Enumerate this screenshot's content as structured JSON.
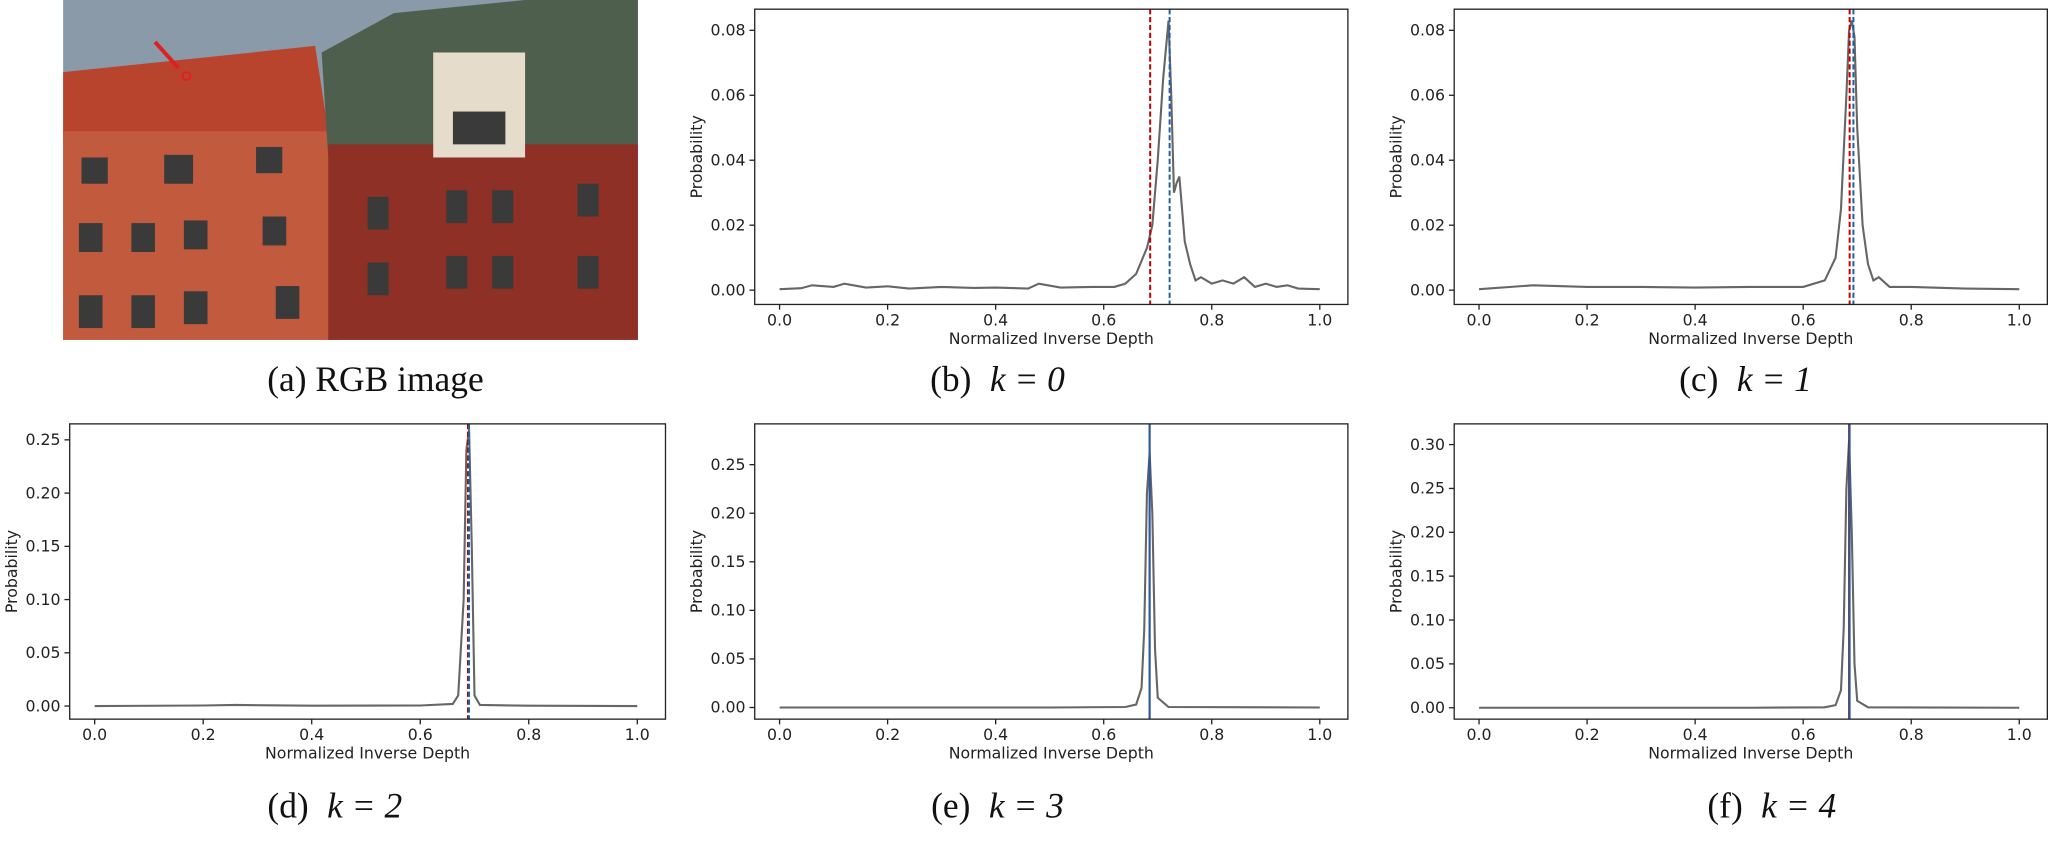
{
  "figure": {
    "image_caption": "(a) RGB image"
  },
  "chart_data": [
    {
      "type": "line",
      "caption": "(b)",
      "caption_math": "k = 0",
      "xlabel": "Normalized Inverse Depth",
      "ylabel": "Probability",
      "x": [
        0,
        0.04,
        0.06,
        0.1,
        0.12,
        0.16,
        0.2,
        0.24,
        0.3,
        0.36,
        0.4,
        0.46,
        0.48,
        0.52,
        0.58,
        0.62,
        0.64,
        0.66,
        0.67,
        0.68,
        0.69,
        0.7,
        0.71,
        0.72,
        0.725,
        0.73,
        0.735,
        0.74,
        0.75,
        0.76,
        0.77,
        0.78,
        0.8,
        0.82,
        0.84,
        0.86,
        0.88,
        0.9,
        0.92,
        0.94,
        0.96,
        1.0
      ],
      "values": [
        0.0003,
        0.0006,
        0.0015,
        0.001,
        0.002,
        0.0008,
        0.0012,
        0.0005,
        0.001,
        0.0007,
        0.0008,
        0.0005,
        0.002,
        0.0008,
        0.001,
        0.001,
        0.002,
        0.005,
        0.009,
        0.013,
        0.02,
        0.04,
        0.065,
        0.083,
        0.06,
        0.03,
        0.033,
        0.035,
        0.015,
        0.008,
        0.003,
        0.004,
        0.002,
        0.003,
        0.002,
        0.004,
        0.001,
        0.002,
        0.001,
        0.0015,
        0.0005,
        0.0003
      ],
      "color": "#666666",
      "vlines": [
        {
          "x": 0.686,
          "color": "#c00000",
          "dashed": true
        },
        {
          "x": 0.722,
          "color": "#1f5fa8",
          "dashed": true
        }
      ],
      "xlim": [
        -0.046,
        1.052
      ],
      "ylim": [
        -0.0044,
        0.0865
      ],
      "xticks": [
        {
          "value": 0,
          "label": "0.0"
        },
        0.2,
        0.4,
        0.6,
        0.8,
        {
          "value": 1,
          "label": "1.0"
        }
      ],
      "yticks": [
        {
          "value": 0,
          "label": "0.00"
        },
        0.02,
        0.04,
        0.06,
        0.08
      ]
    },
    {
      "type": "line",
      "caption": "(c)",
      "caption_math": "k = 1",
      "xlabel": "Normalized Inverse Depth",
      "ylabel": "Probability",
      "x": [
        0,
        0.1,
        0.2,
        0.3,
        0.4,
        0.5,
        0.6,
        0.64,
        0.66,
        0.67,
        0.68,
        0.685,
        0.69,
        0.695,
        0.7,
        0.71,
        0.72,
        0.73,
        0.74,
        0.76,
        0.8,
        0.9,
        1.0
      ],
      "values": [
        0.0003,
        0.0015,
        0.001,
        0.001,
        0.0008,
        0.001,
        0.001,
        0.003,
        0.01,
        0.025,
        0.06,
        0.08,
        0.083,
        0.078,
        0.05,
        0.02,
        0.008,
        0.003,
        0.004,
        0.001,
        0.001,
        0.0005,
        0.0003
      ],
      "color": "#666666",
      "vlines": [
        {
          "x": 0.686,
          "color": "#c00000",
          "dashed": true
        },
        {
          "x": 0.693,
          "color": "#1f5fa8",
          "dashed": true
        }
      ],
      "xlim": [
        -0.046,
        1.052
      ],
      "ylim": [
        -0.0044,
        0.0865
      ],
      "xticks": [
        {
          "value": 0,
          "label": "0.0"
        },
        0.2,
        0.4,
        0.6,
        0.8,
        {
          "value": 1,
          "label": "1.0"
        }
      ],
      "yticks": [
        {
          "value": 0,
          "label": "0.00"
        },
        0.02,
        0.04,
        0.06,
        0.08
      ]
    },
    {
      "type": "line",
      "caption": "(d)",
      "caption_math": "k = 2",
      "xlabel": "Normalized Inverse Depth",
      "ylabel": "Probability",
      "x": [
        0,
        0.2,
        0.26,
        0.4,
        0.6,
        0.66,
        0.67,
        0.68,
        0.685,
        0.69,
        0.695,
        0.7,
        0.71,
        0.8,
        1.0
      ],
      "values": [
        0,
        0.0005,
        0.001,
        0.0003,
        0.0005,
        0.002,
        0.01,
        0.1,
        0.24,
        0.26,
        0.15,
        0.01,
        0.001,
        0.0003,
        0
      ],
      "color": "#666666",
      "vlines": [
        {
          "x": 0.688,
          "color": "#c00000",
          "dashed": true
        },
        {
          "x": 0.69,
          "color": "#1f5fa8",
          "dashed": true
        }
      ],
      "xlim": [
        -0.046,
        1.052
      ],
      "ylim": [
        -0.0123,
        0.265
      ],
      "xticks": [
        {
          "value": 0,
          "label": "0.0"
        },
        0.2,
        0.4,
        0.6,
        0.8,
        {
          "value": 1,
          "label": "1.0"
        }
      ],
      "yticks": [
        {
          "value": 0,
          "label": "0.00"
        },
        0.05,
        {
          "value": 0.1,
          "label": "0.10"
        },
        0.15,
        {
          "value": 0.2,
          "label": "0.20"
        },
        0.25
      ]
    },
    {
      "type": "line",
      "caption": "(e)",
      "caption_math": "k = 3",
      "xlabel": "Normalized Inverse Depth",
      "ylabel": "Probability",
      "x": [
        0,
        0.5,
        0.64,
        0.66,
        0.67,
        0.675,
        0.68,
        0.685,
        0.69,
        0.695,
        0.7,
        0.72,
        1.0
      ],
      "values": [
        0,
        0,
        0.0005,
        0.003,
        0.02,
        0.08,
        0.22,
        0.262,
        0.2,
        0.06,
        0.01,
        0.0005,
        0
      ],
      "color": "#666666",
      "vlines": [
        {
          "x": 0.685,
          "color": "#c00000",
          "dashed": false
        },
        {
          "x": 0.685,
          "color": "#1f5fa8",
          "dashed": false
        }
      ],
      "xlim": [
        -0.046,
        1.052
      ],
      "ylim": [
        -0.012,
        0.292
      ],
      "xticks": [
        {
          "value": 0,
          "label": "0.0"
        },
        0.2,
        0.4,
        0.6,
        0.8,
        {
          "value": 1,
          "label": "1.0"
        }
      ],
      "yticks": [
        {
          "value": 0,
          "label": "0.00"
        },
        0.05,
        {
          "value": 0.1,
          "label": "0.10"
        },
        0.15,
        {
          "value": 0.2,
          "label": "0.20"
        },
        0.25
      ]
    },
    {
      "type": "line",
      "caption": "(f)",
      "caption_math": "k = 4",
      "xlabel": "Normalized Inverse Depth",
      "ylabel": "Probability",
      "x": [
        0,
        0.5,
        0.64,
        0.66,
        0.67,
        0.675,
        0.68,
        0.685,
        0.69,
        0.695,
        0.7,
        0.72,
        1.0
      ],
      "values": [
        0,
        0,
        0.0005,
        0.003,
        0.02,
        0.09,
        0.25,
        0.305,
        0.2,
        0.05,
        0.008,
        0.0005,
        0
      ],
      "color": "#666666",
      "vlines": [
        {
          "x": 0.685,
          "color": "#c00000",
          "dashed": false
        },
        {
          "x": 0.686,
          "color": "#1f5fa8",
          "dashed": false
        }
      ],
      "xlim": [
        -0.046,
        1.052
      ],
      "ylim": [
        -0.013,
        0.3236
      ],
      "xticks": [
        {
          "value": 0,
          "label": "0.0"
        },
        0.2,
        0.4,
        0.6,
        0.8,
        {
          "value": 1,
          "label": "1.0"
        }
      ],
      "yticks": [
        {
          "value": 0,
          "label": "0.00"
        },
        0.05,
        {
          "value": 0.1,
          "label": "0.10"
        },
        0.15,
        {
          "value": 0.2,
          "label": "0.20"
        },
        0.25,
        {
          "value": 0.3,
          "label": "0.30"
        }
      ]
    }
  ]
}
